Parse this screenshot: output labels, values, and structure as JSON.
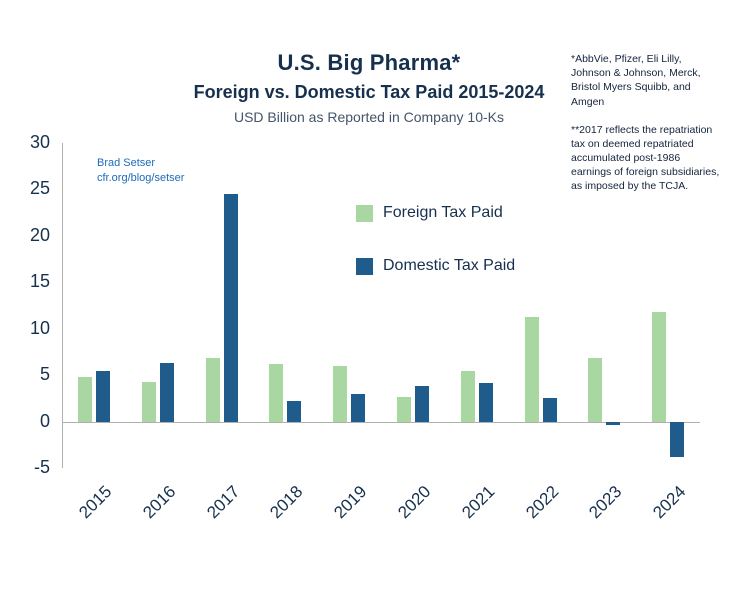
{
  "header": {
    "title": "U.S. Big Pharma*",
    "subtitle": "Foreign vs. Domestic Tax Paid 2015-2024",
    "subtitle2": "USD Billion as Reported in Company 10-Ks"
  },
  "credit": {
    "line1": "Brad Setser",
    "line2": "cfr.org/blog/setser"
  },
  "notes": {
    "note1": "*AbbVie, Pfizer, Eli Lilly, Johnson & Johnson, Merck, Bristol Myers Squibb, and Amgen",
    "note2": "**2017 reflects the repatriation tax on deemed repatriated accumulated post-1986 earnings of foreign subsidiaries, as imposed by the TCJA."
  },
  "colors": {
    "foreign": "#a9d7a2",
    "domestic": "#1f5c8b",
    "navy": "#16304e",
    "slate": "#44546a",
    "notes": "#14233c",
    "credit": "#1e6bb8",
    "axis": "#b0b0b0"
  },
  "chart_data": {
    "type": "bar",
    "title": "U.S. Big Pharma*",
    "subtitle": "Foreign vs. Domestic Tax Paid 2015-2024",
    "units": "USD Billion as Reported in Company 10-Ks",
    "categories": [
      "2015",
      "2016",
      "2017",
      "2018",
      "2019",
      "2020",
      "2021",
      "2022",
      "2023",
      "2024"
    ],
    "series": [
      {
        "name": "Foreign Tax Paid",
        "values": [
          4.8,
          4.3,
          6.9,
          6.2,
          6.0,
          2.6,
          5.4,
          11.3,
          6.9,
          11.8
        ]
      },
      {
        "name": "Domestic Tax Paid",
        "values": [
          5.5,
          6.3,
          24.5,
          2.2,
          3.0,
          3.8,
          4.2,
          2.5,
          -0.4,
          -3.8
        ]
      }
    ],
    "xlabel": "",
    "ylabel": "",
    "ylim": [
      -5,
      30
    ],
    "yticks": [
      30,
      25,
      20,
      15,
      10,
      5,
      0,
      -5
    ],
    "grid": false,
    "legend_position": "inside-upper-middle"
  }
}
